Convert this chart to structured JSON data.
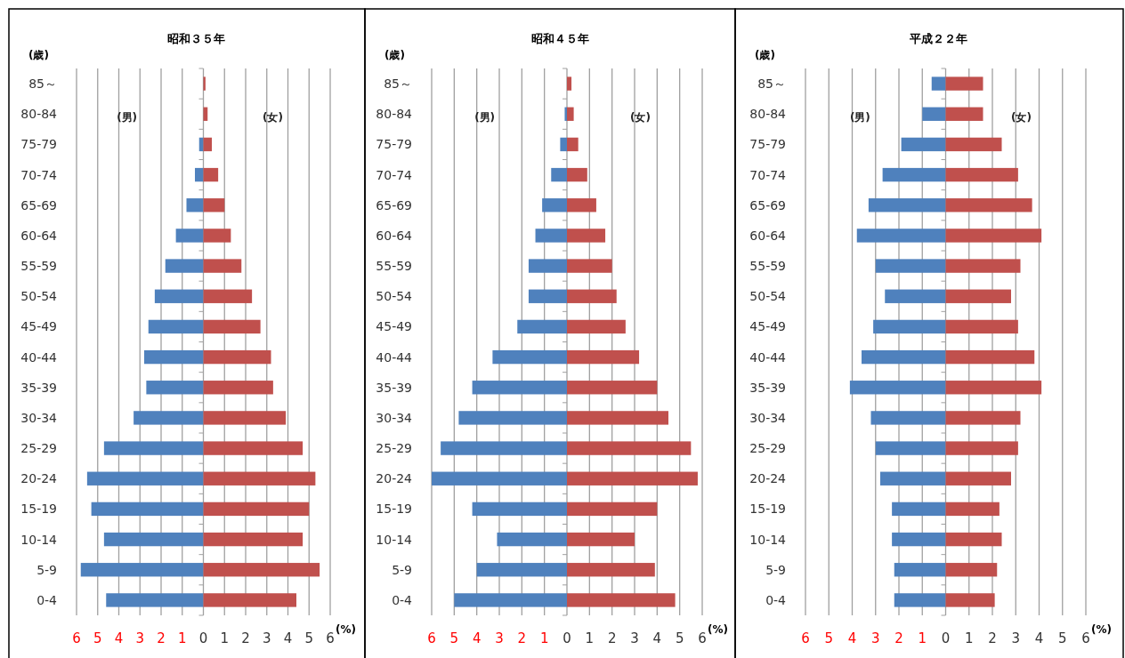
{
  "chart_data": [
    {
      "type": "bar",
      "orientation": "horizontal",
      "stacked": true,
      "title": "昭和３５年",
      "ylabel": "(歳)",
      "xlabel": "(%)",
      "grid": "x",
      "categories": [
        "85～",
        "80-84",
        "75-79",
        "70-74",
        "65-69",
        "60-64",
        "55-59",
        "50-54",
        "45-49",
        "40-44",
        "35-39",
        "30-34",
        "25-29",
        "20-24",
        "15-19",
        "10-14",
        "5-9",
        "0-4"
      ],
      "series": [
        {
          "color": "#4f81bd",
          "values": [
            0,
            0,
            -0.2,
            -0.4,
            -0.8,
            -1.3,
            -1.8,
            -2.3,
            -2.6,
            -2.8,
            -2.7,
            -3.3,
            -4.7,
            -5.5,
            -5.3,
            -4.7,
            -5.8,
            -4.6
          ]
        },
        {
          "color": "#c0504d",
          "values": [
            0.1,
            0.2,
            0.4,
            0.7,
            1.0,
            1.3,
            1.8,
            2.3,
            2.7,
            3.2,
            3.3,
            3.9,
            4.7,
            5.3,
            5.0,
            4.7,
            5.5,
            4.4
          ]
        }
      ],
      "xlim": [
        -6,
        6
      ],
      "xticks": [
        {
          "value": -6,
          "label": "6"
        },
        {
          "value": -5,
          "label": "5"
        },
        {
          "value": -4,
          "label": "4"
        },
        {
          "value": -3,
          "label": "3"
        },
        {
          "value": -2,
          "label": "2"
        },
        {
          "value": -1,
          "label": "1"
        },
        0,
        1,
        2,
        3,
        4,
        5,
        6
      ],
      "annotations": [
        "(男)",
        "(女)"
      ]
    },
    {
      "type": "bar",
      "orientation": "horizontal",
      "stacked": true,
      "title": "昭和４５年",
      "ylabel": "(歳)",
      "xlabel": "(%)",
      "grid": "x",
      "categories": [
        "85～",
        "80-84",
        "75-79",
        "70-74",
        "65-69",
        "60-64",
        "55-59",
        "50-54",
        "45-49",
        "40-44",
        "35-39",
        "30-34",
        "25-29",
        "20-24",
        "15-19",
        "10-14",
        "5-9",
        "0-4"
      ],
      "series": [
        {
          "color": "#4f81bd",
          "values": [
            0,
            -0.1,
            -0.3,
            -0.7,
            -1.1,
            -1.4,
            -1.7,
            -1.7,
            -2.2,
            -3.3,
            -4.2,
            -4.8,
            -5.6,
            -6.0,
            -4.2,
            -3.1,
            -4.0,
            -5.0
          ]
        },
        {
          "color": "#c0504d",
          "values": [
            0.2,
            0.3,
            0.5,
            0.9,
            1.3,
            1.7,
            2.0,
            2.2,
            2.6,
            3.2,
            4.0,
            4.5,
            5.5,
            5.8,
            4.0,
            3.0,
            3.9,
            4.8
          ]
        }
      ],
      "xlim": [
        -6,
        6
      ],
      "xticks": [
        {
          "value": -6,
          "label": "6"
        },
        {
          "value": -5,
          "label": "5"
        },
        {
          "value": -4,
          "label": "4"
        },
        {
          "value": -3,
          "label": "3"
        },
        {
          "value": -2,
          "label": "2"
        },
        {
          "value": -1,
          "label": "1"
        },
        0,
        1,
        2,
        3,
        4,
        5,
        6
      ],
      "annotations": [
        "(男)",
        "(女)"
      ]
    },
    {
      "type": "bar",
      "orientation": "horizontal",
      "stacked": true,
      "title": "平成２２年",
      "ylabel": "(歳)",
      "xlabel": "(%)",
      "grid": "x",
      "categories": [
        "85～",
        "80-84",
        "75-79",
        "70-74",
        "65-69",
        "60-64",
        "55-59",
        "50-54",
        "45-49",
        "40-44",
        "35-39",
        "30-34",
        "25-29",
        "20-24",
        "15-19",
        "10-14",
        "5-9",
        "0-4"
      ],
      "series": [
        {
          "color": "#4f81bd",
          "values": [
            -0.6,
            -1.0,
            -1.9,
            -2.7,
            -3.3,
            -3.8,
            -3.0,
            -2.6,
            -3.1,
            -3.6,
            -4.1,
            -3.2,
            -3.0,
            -2.8,
            -2.3,
            -2.3,
            -2.2,
            -2.2
          ]
        },
        {
          "color": "#c0504d",
          "values": [
            1.6,
            1.6,
            2.4,
            3.1,
            3.7,
            4.1,
            3.2,
            2.8,
            3.1,
            3.8,
            4.1,
            3.2,
            3.1,
            2.8,
            2.3,
            2.4,
            2.2,
            2.1
          ]
        }
      ],
      "xlim": [
        -6,
        6
      ],
      "xticks": [
        {
          "value": -6,
          "label": "6"
        },
        {
          "value": -5,
          "label": "5"
        },
        {
          "value": -4,
          "label": "4"
        },
        {
          "value": -3,
          "label": "3"
        },
        {
          "value": -2,
          "label": "2"
        },
        {
          "value": -1,
          "label": "1"
        },
        0,
        1,
        2,
        3,
        4,
        5,
        6
      ],
      "annotations": [
        "(男)",
        "(女)"
      ]
    }
  ]
}
